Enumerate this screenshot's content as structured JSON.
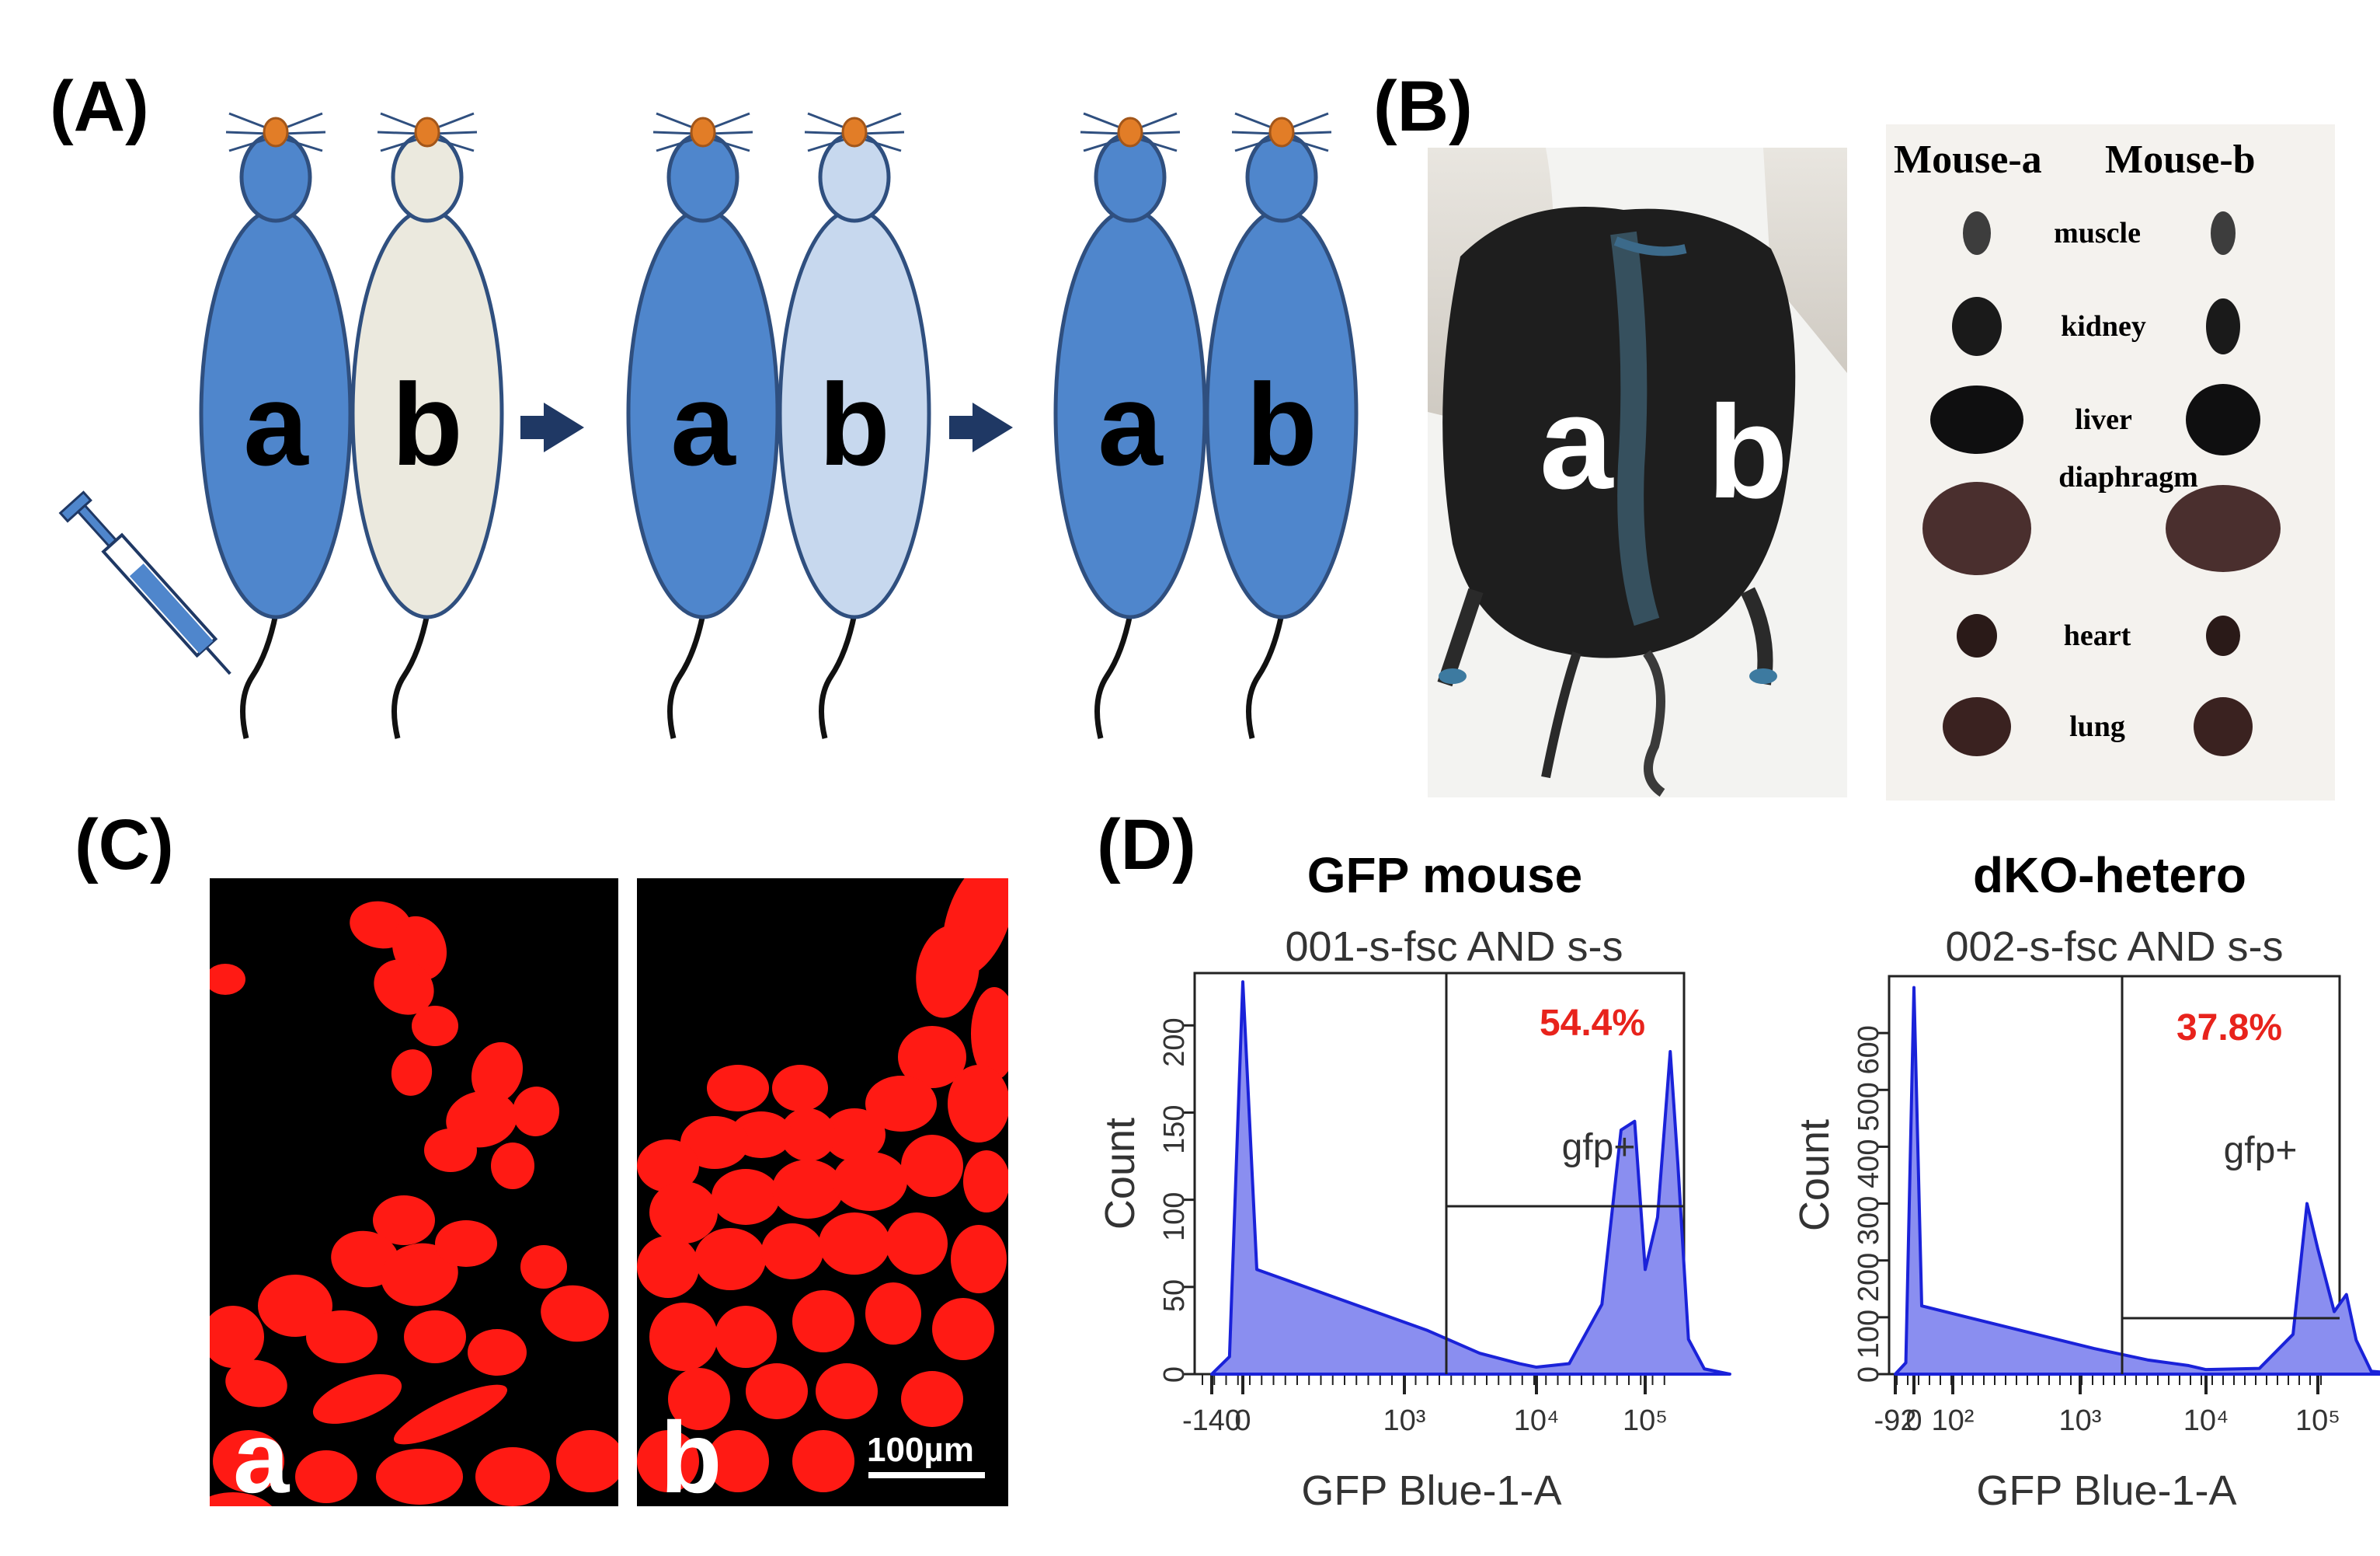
{
  "panels": {
    "A": {
      "label": "(A)",
      "stages": [
        {
          "a": "a",
          "b": "b",
          "color_a": "#4f86cc",
          "color_b": "#ebe9de"
        },
        {
          "a": "a",
          "b": "b",
          "color_a": "#4f86cc",
          "color_b": "#c7d8ee"
        },
        {
          "a": "a",
          "b": "b",
          "color_a": "#4f86cc",
          "color_b": "#4f86cc"
        }
      ]
    },
    "B": {
      "label": "(B)",
      "photo_a": "a",
      "photo_b": "b",
      "col_a": "Mouse-a",
      "col_b": "Mouse-b",
      "organs": [
        "muscle",
        "kidney",
        "liver",
        "diaphragm",
        "heart",
        "lung"
      ]
    },
    "C": {
      "label": "(C)",
      "image_a": "a",
      "image_b": "b",
      "scale_bar": "100µm"
    },
    "D": {
      "label": "(D)",
      "icons": [
        "syringe-icon",
        "arrow-right-icon"
      ],
      "colors": {
        "histogram": "#1a22d9",
        "fill": "#8a8ef0",
        "percent": "#e8231c"
      }
    }
  },
  "chart_data": [
    {
      "type": "area",
      "title": "GFP mouse",
      "subtitle": "001-s-fsc AND s-s",
      "xlabel": "GFP Blue-1-A",
      "ylabel": "Count",
      "x_scale": "biexponential",
      "x_ticks": [
        "-140",
        "0",
        "10³",
        "10⁴",
        "10⁵"
      ],
      "y_ticks": [
        "0",
        "50",
        "100",
        "150",
        "200"
      ],
      "ylim": [
        0,
        230
      ],
      "gate": {
        "name": "gfp+",
        "percent": "54.4%",
        "x_start": 1000
      },
      "series": [
        {
          "x": [
            "-140",
            "-60",
            "0",
            "30",
            "100",
            "300",
            "700",
            "1000",
            "2000",
            "4000",
            "6000",
            "8000",
            "10000",
            "13000",
            "17000",
            "20000",
            "25000",
            "35000",
            "60000"
          ],
          "values": [
            0,
            10,
            225,
            60,
            25,
            12,
            6,
            4,
            6,
            40,
            140,
            145,
            60,
            90,
            185,
            120,
            20,
            3,
            0
          ]
        }
      ]
    },
    {
      "type": "area",
      "title": "dKO-hetero",
      "subtitle": "002-s-fsc AND s-s",
      "xlabel": "GFP Blue-1-A",
      "ylabel": "Count",
      "x_scale": "biexponential",
      "x_ticks": [
        "-92",
        "0",
        "10²",
        "10³",
        "10⁴",
        "10⁵"
      ],
      "y_ticks": [
        "0",
        "100",
        "200",
        "300",
        "400",
        "500",
        "600"
      ],
      "ylim": [
        0,
        700
      ],
      "gate": {
        "name": "gfp+",
        "percent": "37.8%",
        "x_start": 1000
      },
      "series": [
        {
          "x": [
            "-92",
            "-40",
            "0",
            "20",
            "100",
            "300",
            "700",
            "1000",
            "3000",
            "6000",
            "8000",
            "10000",
            "14000",
            "18000",
            "22000",
            "30000",
            "60000"
          ],
          "values": [
            0,
            20,
            680,
            120,
            45,
            25,
            15,
            8,
            10,
            70,
            300,
            220,
            110,
            140,
            60,
            5,
            0
          ]
        }
      ]
    }
  ]
}
